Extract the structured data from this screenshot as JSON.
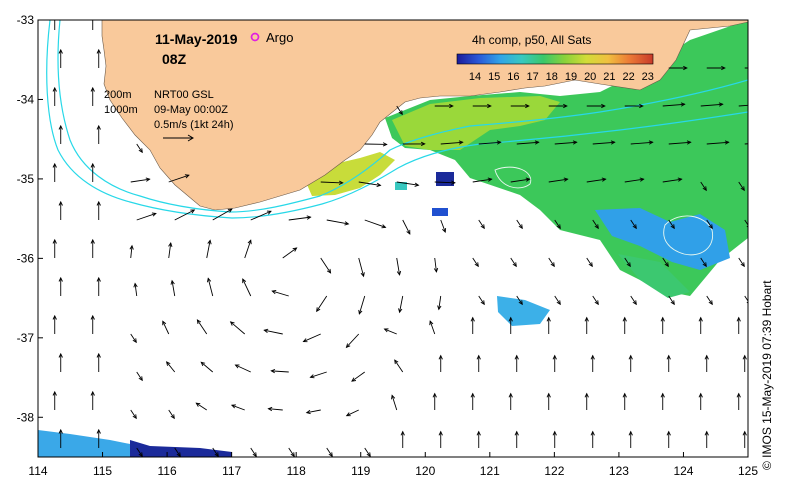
{
  "header": {
    "date": "11-May-2019",
    "time": "08Z",
    "argo_label": "Argo"
  },
  "legend": {
    "colorbar_title": "4h comp, p50, All Sats",
    "colorbar_ticks": [
      "14",
      "15",
      "16",
      "17",
      "18",
      "19",
      "20",
      "21",
      "22",
      "23"
    ],
    "colorbar_colors": [
      "#1b1b9a",
      "#2a58d8",
      "#31a4e8",
      "#38c8c0",
      "#3ac86a",
      "#8ad23a",
      "#d2dc38",
      "#f0c040",
      "#ec7a36",
      "#c83a2a"
    ]
  },
  "info": {
    "contour_200": "200m",
    "contour_1000": "1000m",
    "product": "NRT00 GSL",
    "product_date": "09-May 00:00Z",
    "scale": "0.5m/s (1kt 24h)"
  },
  "axes": {
    "x_ticks": [
      "114",
      "115",
      "116",
      "117",
      "118",
      "119",
      "120",
      "121",
      "122",
      "123",
      "124",
      "125"
    ],
    "y_ticks": [
      "-33",
      "-34",
      "-35",
      "-36",
      "-37",
      "-38"
    ],
    "lon_range": [
      114,
      125
    ],
    "lat_range": [
      -38.5,
      -33
    ]
  },
  "credit": "© IMOS 15-May-2019 07:39 Hobart",
  "colors": {
    "land": "#f9c99b",
    "isobath": "#28d8e8",
    "argo": "#e020e0",
    "sst_warm": "#7ad63a",
    "sst_green": "#3cc85a",
    "sst_blue": "#2f8fe0"
  }
}
